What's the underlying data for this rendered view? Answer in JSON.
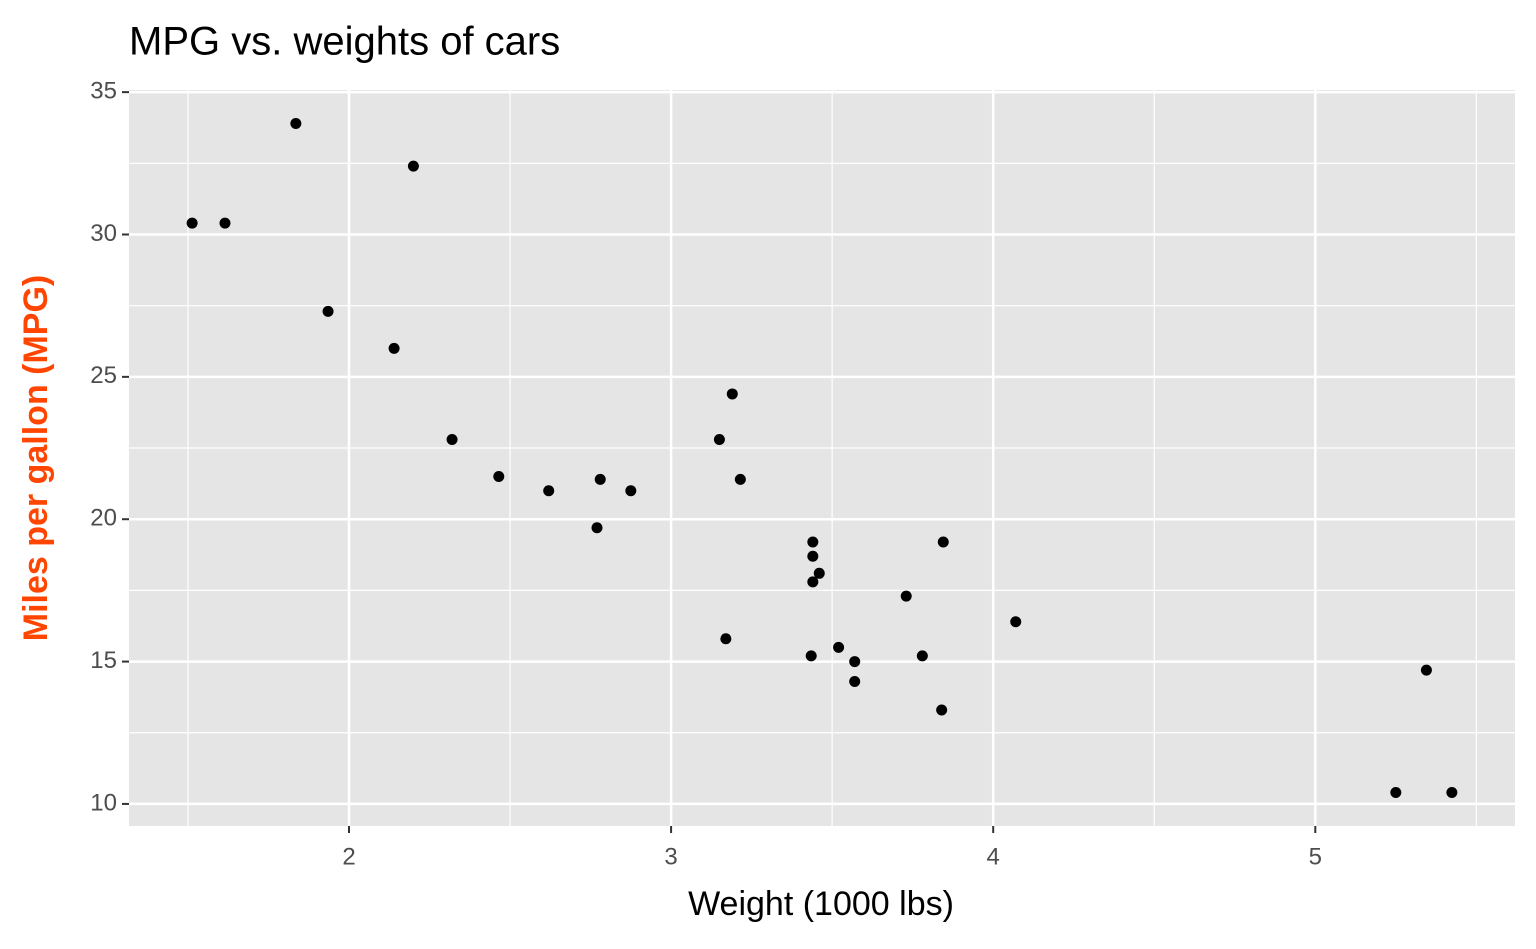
{
  "chart_data": {
    "type": "scatter",
    "title": "MPG vs. weights of cars",
    "x_label": "Weight (1000 lbs)",
    "y_label": "Miles per gallon (MPG)",
    "y_label_color": "#ff4500",
    "color": "#000000",
    "panel_color": "#e5e5e5",
    "grid": true,
    "x": [
      2.62,
      2.875,
      2.32,
      3.215,
      3.44,
      3.46,
      3.57,
      3.19,
      3.15,
      3.44,
      3.44,
      4.07,
      3.73,
      3.78,
      5.25,
      5.424,
      5.345,
      2.2,
      1.615,
      1.835,
      2.465,
      3.52,
      3.435,
      3.84,
      3.845,
      1.935,
      2.14,
      1.513,
      3.17,
      2.77,
      3.57,
      2.78
    ],
    "values": [
      21.0,
      21.0,
      22.8,
      21.4,
      18.7,
      18.1,
      14.3,
      24.4,
      22.8,
      19.2,
      17.8,
      16.4,
      17.3,
      15.2,
      10.4,
      10.4,
      14.7,
      32.4,
      30.4,
      33.9,
      21.5,
      15.5,
      15.2,
      13.3,
      19.2,
      27.3,
      26.0,
      30.4,
      15.8,
      19.7,
      15.0,
      21.4
    ],
    "xlim": [
      1.317,
      5.62
    ],
    "ylim": [
      9.225,
      35.075
    ],
    "xticks": [
      2,
      3,
      4,
      5
    ],
    "yticks": [
      10,
      15,
      20,
      25,
      30,
      35
    ],
    "x_minor_ticks": [
      1.5,
      2.5,
      3.5,
      4.5,
      5.5
    ],
    "y_minor_ticks": [
      12.5,
      17.5,
      22.5,
      27.5,
      32.5
    ]
  }
}
